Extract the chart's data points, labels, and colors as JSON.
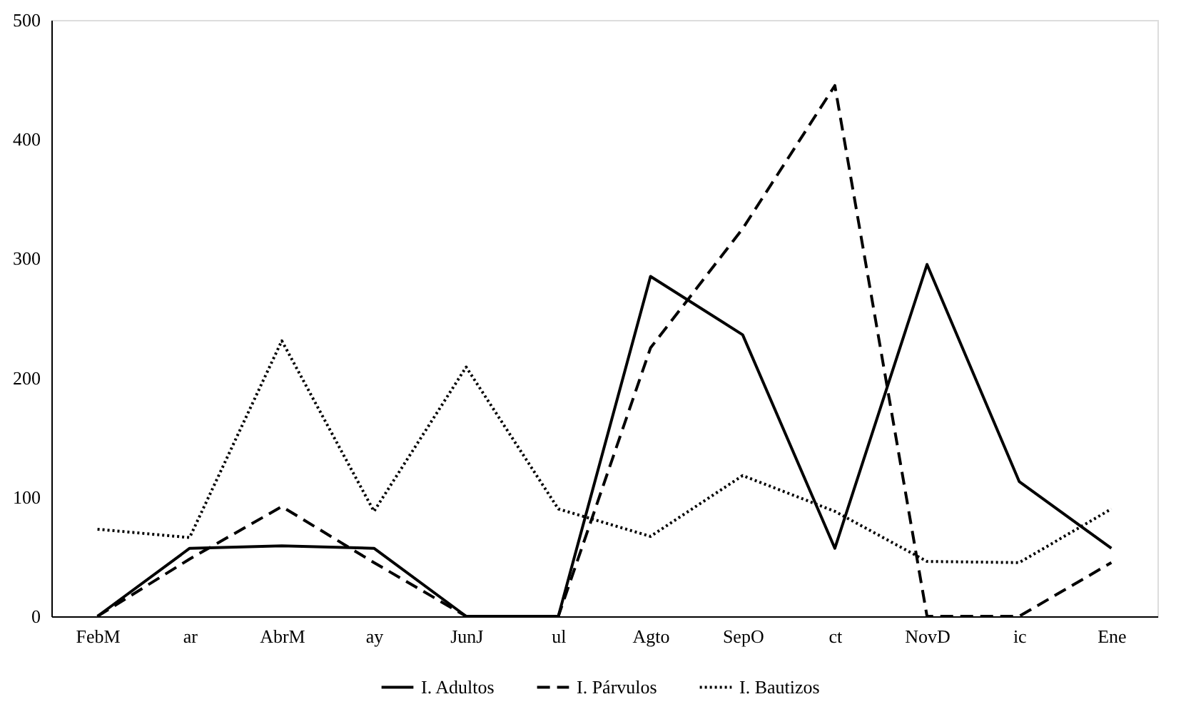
{
  "chart_data": {
    "type": "line",
    "categories": [
      "FebM",
      "ar",
      "AbrM",
      "ay",
      "JunJ",
      "ul",
      "Agto",
      "SepO",
      "ct",
      "NovD",
      "ic",
      "Ene"
    ],
    "series": [
      {
        "name": "I. Adultos",
        "color": "#000000",
        "line_style": "solid",
        "values": [
          0,
          57,
          59,
          57,
          0,
          0,
          285,
          236,
          57,
          295,
          113,
          57
        ]
      },
      {
        "name": "I. Párvulos",
        "color": "#000000",
        "line_style": "dashed",
        "values": [
          0,
          48,
          92,
          45,
          0,
          0,
          225,
          325,
          445,
          0,
          0,
          45
        ]
      },
      {
        "name": "I. Bautizos",
        "color": "#000000",
        "line_style": "dotted",
        "values": [
          73,
          66,
          231,
          88,
          209,
          90,
          67,
          118,
          88,
          46,
          45,
          90
        ]
      }
    ],
    "ylim": [
      0,
      500
    ],
    "yticks": [
      0,
      100,
      200,
      300,
      400,
      500
    ],
    "grid": false,
    "legend": "bottom",
    "marker": "none"
  }
}
